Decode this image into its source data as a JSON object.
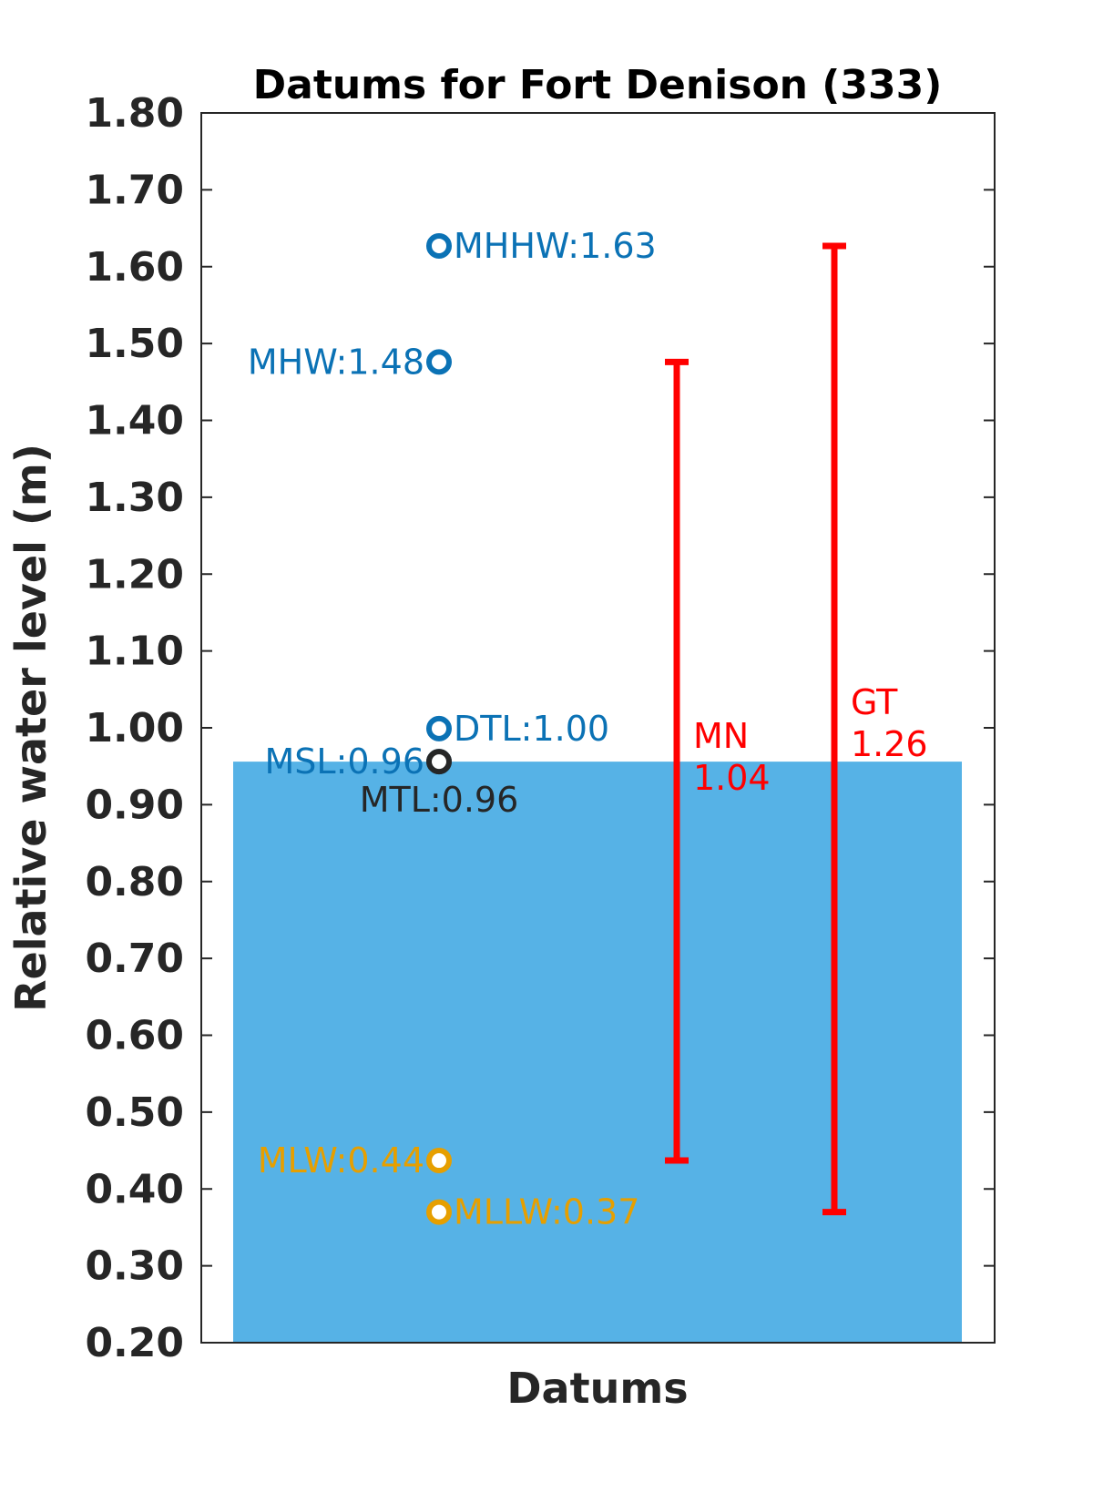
{
  "chart_data": {
    "type": "bar",
    "title": "Datums for Fort Denison (333)",
    "xlabel": "Datums",
    "ylabel": "Relative water level (m)",
    "ylim": [
      0.2,
      1.8
    ],
    "yticks": [
      "0.20",
      "0.30",
      "0.40",
      "0.50",
      "0.60",
      "0.70",
      "0.80",
      "0.90",
      "1.00",
      "1.10",
      "1.20",
      "1.30",
      "1.40",
      "1.50",
      "1.60",
      "1.70",
      "1.80"
    ],
    "grid": false,
    "bar": {
      "name": "MSL",
      "value": 0.956,
      "color": "#56B2E6"
    },
    "datums": [
      {
        "name": "MHHW",
        "value": 1.627,
        "label": "MHHW:1.63",
        "color": "#0B72B5",
        "label_side": "right"
      },
      {
        "name": "MHW",
        "value": 1.476,
        "label": "MHW:1.48",
        "color": "#0B72B5",
        "label_side": "left"
      },
      {
        "name": "DTL",
        "value": 0.999,
        "label": "DTL:1.00",
        "color": "#0B72B5",
        "label_side": "right"
      },
      {
        "name": "MSL",
        "value": 0.956,
        "label": "MSL:0.96",
        "color": "#0B72B5",
        "label_side": "left"
      },
      {
        "name": "MTL",
        "value": 0.956,
        "label": "MTL:0.96",
        "color": "#262626",
        "label_side": "below"
      },
      {
        "name": "MLW",
        "value": 0.437,
        "label": "MLW:0.44",
        "color": "#E69F00",
        "label_side": "left"
      },
      {
        "name": "MLLW",
        "value": 0.37,
        "label": "MLLW:0.37",
        "color": "#E69F00",
        "label_side": "right"
      }
    ],
    "ranges": [
      {
        "name": "MN",
        "low": 0.437,
        "high": 1.476,
        "label": "MN",
        "value_label": "1.04",
        "color": "#FF0000"
      },
      {
        "name": "GT",
        "low": 0.37,
        "high": 1.627,
        "label": "GT",
        "value_label": "1.26",
        "color": "#FF0000"
      }
    ]
  }
}
